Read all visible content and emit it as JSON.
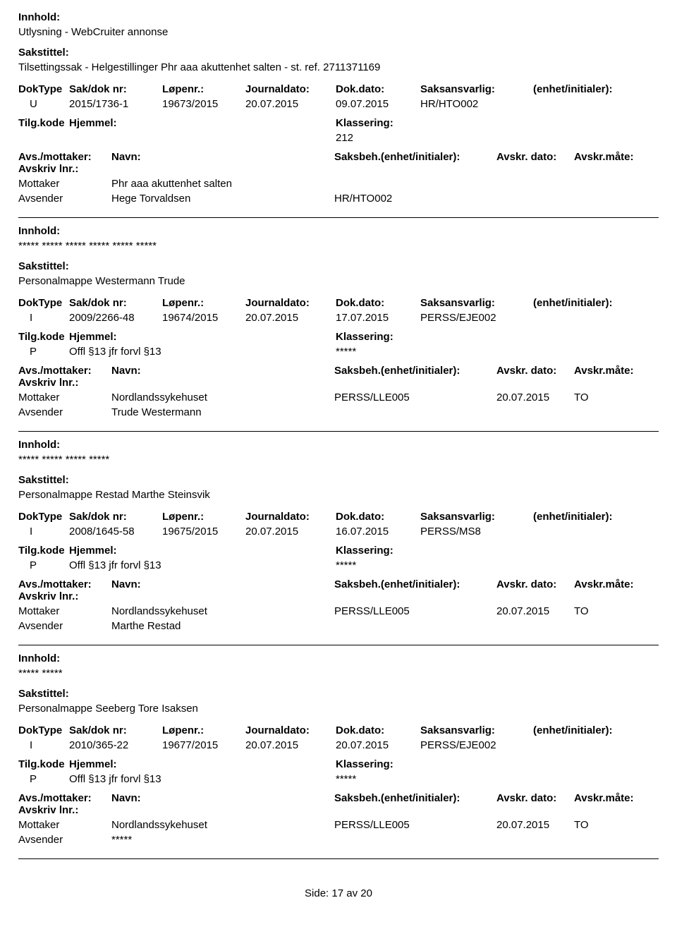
{
  "labels": {
    "innhold": "Innhold:",
    "sakstittel": "Sakstittel:",
    "doktype": "DokType",
    "saknr": "Sak/dok nr:",
    "lopenr": "Løpenr.:",
    "journaldato": "Journaldato:",
    "dokdato": "Dok.dato:",
    "saksansvarlig": "Saksansvarlig:",
    "enhet_init": "(enhet/initialer):",
    "tilgkode": "Tilg.kode",
    "hjemmel": "Hjemmel:",
    "klassering": "Klassering:",
    "avs_mottaker": "Avs./mottaker:",
    "navn": "Navn:",
    "saksbeh": "Saksbeh.(enhet/initialer):",
    "avskr_dato": "Avskr. dato:",
    "avskr_mate": "Avskr.måte:",
    "avskriv_lnr": "Avskriv lnr.:",
    "mottaker": "Mottaker",
    "avsender": "Avsender"
  },
  "entries": [
    {
      "innhold": "Utlysning - WebCruiter annonse",
      "sakstittel": "Tilsettingssak - Helgestillinger Phr aaa akuttenhet salten - st. ref. 2711371169",
      "doktype": "U",
      "saknr": "2015/1736-1",
      "lopenr": "19673/2015",
      "journaldato": "20.07.2015",
      "dokdato": "09.07.2015",
      "saksansvarlig": "HR/HTO002",
      "tilgkode": "",
      "hjemmel": "",
      "klassering": "212",
      "parties": [
        {
          "role": "Mottaker",
          "navn": "Phr aaa akuttenhet salten",
          "saksbeh": "",
          "avdato": "",
          "avmate": ""
        },
        {
          "role": "Avsender",
          "navn": "Hege Torvaldsen",
          "saksbeh": "HR/HTO002",
          "avdato": "",
          "avmate": ""
        }
      ]
    },
    {
      "innhold": "***** ***** ***** ***** ***** *****",
      "sakstittel": "Personalmappe Westermann Trude",
      "doktype": "I",
      "saknr": "2009/2266-48",
      "lopenr": "19674/2015",
      "journaldato": "20.07.2015",
      "dokdato": "17.07.2015",
      "saksansvarlig": "PERSS/EJE002",
      "tilgkode": "P",
      "hjemmel": "Offl §13 jfr forvl §13",
      "klassering": "*****",
      "parties": [
        {
          "role": "Mottaker",
          "navn": "Nordlandssykehuset",
          "saksbeh": "PERSS/LLE005",
          "avdato": "20.07.2015",
          "avmate": "TO"
        },
        {
          "role": "Avsender",
          "navn": "Trude Westermann",
          "saksbeh": "",
          "avdato": "",
          "avmate": ""
        }
      ]
    },
    {
      "innhold": "***** ***** ***** *****",
      "sakstittel": "Personalmappe Restad Marthe Steinsvik",
      "doktype": "I",
      "saknr": "2008/1645-58",
      "lopenr": "19675/2015",
      "journaldato": "20.07.2015",
      "dokdato": "16.07.2015",
      "saksansvarlig": "PERSS/MS8",
      "tilgkode": "P",
      "hjemmel": "Offl §13 jfr forvl §13",
      "klassering": "*****",
      "parties": [
        {
          "role": "Mottaker",
          "navn": "Nordlandssykehuset",
          "saksbeh": "PERSS/LLE005",
          "avdato": "20.07.2015",
          "avmate": "TO"
        },
        {
          "role": "Avsender",
          "navn": "Marthe Restad",
          "saksbeh": "",
          "avdato": "",
          "avmate": ""
        }
      ]
    },
    {
      "innhold": "***** *****",
      "sakstittel": "Personalmappe Seeberg Tore Isaksen",
      "doktype": "I",
      "saknr": "2010/365-22",
      "lopenr": "19677/2015",
      "journaldato": "20.07.2015",
      "dokdato": "20.07.2015",
      "saksansvarlig": "PERSS/EJE002",
      "tilgkode": "P",
      "hjemmel": "Offl §13 jfr forvl §13",
      "klassering": "*****",
      "parties": [
        {
          "role": "Mottaker",
          "navn": "Nordlandssykehuset",
          "saksbeh": "PERSS/LLE005",
          "avdato": "20.07.2015",
          "avmate": "TO"
        },
        {
          "role": "Avsender",
          "navn": "*****",
          "saksbeh": "",
          "avdato": "",
          "avmate": ""
        }
      ]
    }
  ],
  "footer": {
    "prefix": "Side:",
    "page": "17",
    "mid": "av",
    "total": "20"
  }
}
